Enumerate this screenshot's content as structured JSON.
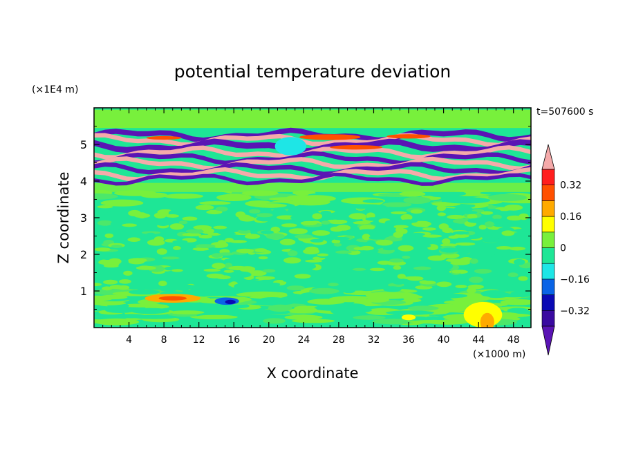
{
  "chart_data": {
    "type": "heatmap",
    "title": "potential temperature deviation",
    "xlabel": "X coordinate",
    "ylabel": "Z coordinate",
    "x_unit_label": "(×1000 m)",
    "y_unit_label": "(×1E4 m)",
    "time_label": "t=507600 s",
    "xlim": [
      0,
      50
    ],
    "ylim": [
      0,
      6
    ],
    "x_ticks": [
      4,
      8,
      12,
      16,
      20,
      24,
      28,
      32,
      36,
      40,
      44,
      48
    ],
    "x_tick_labels": [
      "4",
      "8",
      "12",
      "16",
      "20",
      "24",
      "28",
      "32",
      "36",
      "40",
      "44",
      "48"
    ],
    "y_ticks": [
      1,
      2,
      3,
      4,
      5
    ],
    "y_tick_labels": [
      "1",
      "2",
      "3",
      "4",
      "5"
    ],
    "colorbar": {
      "levels": [
        -0.4,
        -0.32,
        -0.24,
        -0.16,
        -0.08,
        0,
        0.08,
        0.16,
        0.24,
        0.32,
        0.4
      ],
      "colors": [
        "#3a0aa0",
        "#0a0ab4",
        "#0a64e6",
        "#1ee6e6",
        "#1ee696",
        "#78f03c",
        "#ffff00",
        "#ffaa00",
        "#ff5000",
        "#ff1e1e"
      ],
      "under_color": "#5a14b4",
      "over_color": "#f5aaaa",
      "labels": [
        "0.32",
        "0.16",
        "0",
        "−0.16",
        "−0.32"
      ],
      "label_values": [
        0.32,
        0.16,
        0,
        -0.16,
        -0.32
      ]
    },
    "bands": [
      {
        "z": 5.25,
        "thickness": 0.14,
        "color": "#5a14b4"
      },
      {
        "z": 5.12,
        "thickness": 0.12,
        "color": "#f5aaaa"
      },
      {
        "z": 4.95,
        "thickness": 0.16,
        "color": "#5a14b4"
      },
      {
        "z": 4.78,
        "thickness": 0.12,
        "color": "#f5aaaa"
      },
      {
        "z": 4.62,
        "thickness": 0.12,
        "color": "#5a14b4"
      },
      {
        "z": 4.48,
        "thickness": 0.12,
        "color": "#f5aaaa"
      },
      {
        "z": 4.33,
        "thickness": 0.12,
        "color": "#5a14b4"
      },
      {
        "z": 4.18,
        "thickness": 0.12,
        "color": "#f5aaaa"
      },
      {
        "z": 4.05,
        "thickness": 0.1,
        "color": "#5a14b4"
      }
    ],
    "features": [
      {
        "x": 9,
        "z": 0.8,
        "rx": 3.2,
        "rz": 0.12,
        "color": "#ffaa00"
      },
      {
        "x": 9,
        "z": 0.8,
        "rx": 1.6,
        "rz": 0.06,
        "color": "#ff5000"
      },
      {
        "x": 15.2,
        "z": 0.72,
        "rx": 1.4,
        "rz": 0.1,
        "color": "#0a64e6"
      },
      {
        "x": 15.6,
        "z": 0.7,
        "rx": 0.6,
        "rz": 0.06,
        "color": "#0a0ab4"
      },
      {
        "x": 44.5,
        "z": 0.35,
        "rx": 2.2,
        "rz": 0.35,
        "color": "#ffff00"
      },
      {
        "x": 45,
        "z": 0.15,
        "rx": 0.8,
        "rz": 0.25,
        "color": "#ffaa00"
      },
      {
        "x": 36,
        "z": 0.28,
        "rx": 0.8,
        "rz": 0.08,
        "color": "#ffff00"
      },
      {
        "x": 22.5,
        "z": 4.95,
        "rx": 1.8,
        "rz": 0.25,
        "color": "#1ee6e6"
      },
      {
        "x": 27,
        "z": 5.2,
        "rx": 3.5,
        "rz": 0.08,
        "color": "#ff5000"
      },
      {
        "x": 36,
        "z": 5.22,
        "rx": 2.5,
        "rz": 0.06,
        "color": "#ff5000"
      },
      {
        "x": 30,
        "z": 4.92,
        "rx": 3.0,
        "rz": 0.06,
        "color": "#ff5000"
      },
      {
        "x": 8,
        "z": 5.18,
        "rx": 2.0,
        "rz": 0.05,
        "color": "#ff5000"
      }
    ]
  }
}
